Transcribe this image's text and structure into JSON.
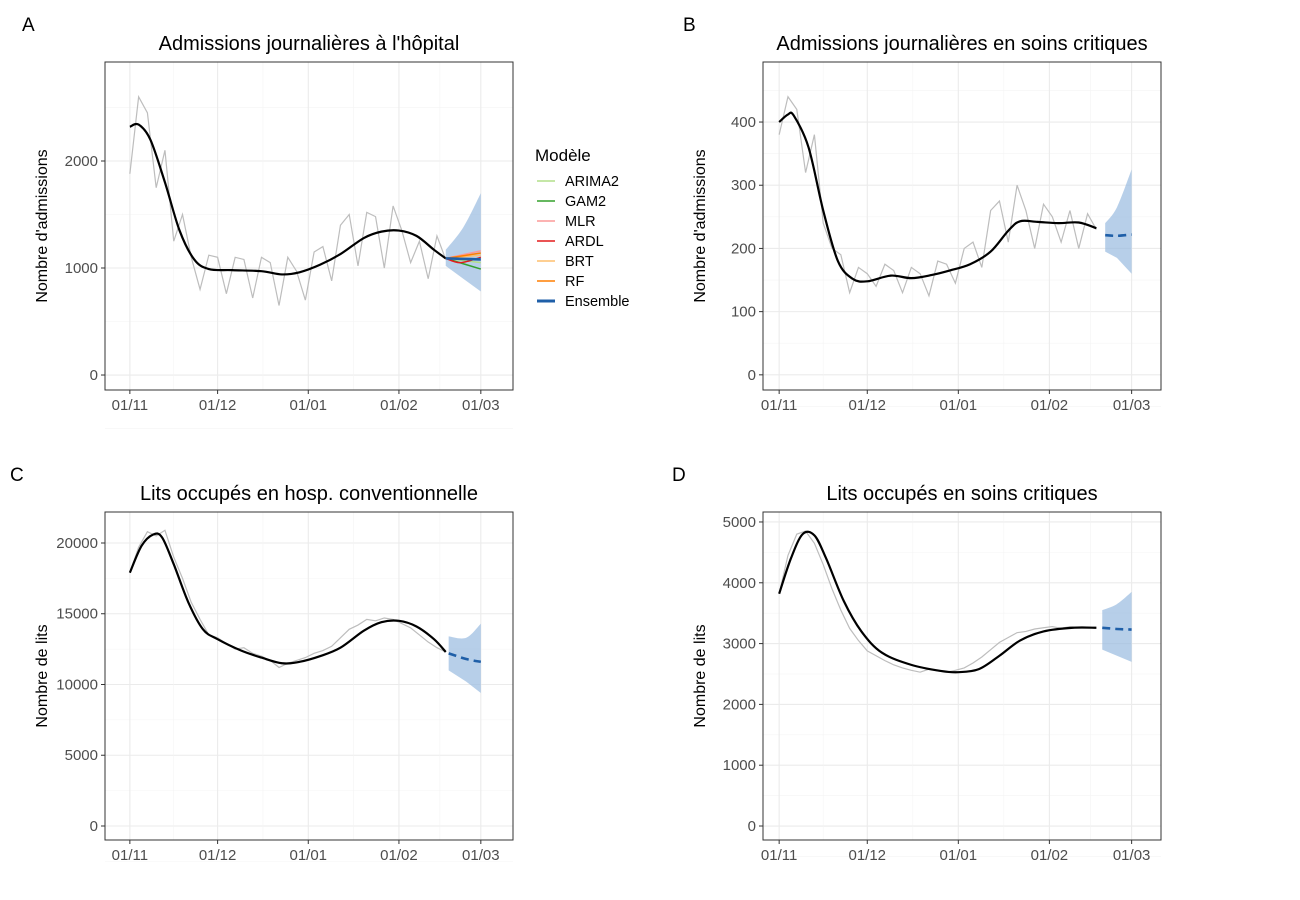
{
  "legend": {
    "title": "Modèle",
    "entries": [
      {
        "name": "ARIMA2",
        "color": "#b2df8a"
      },
      {
        "name": "GAM2",
        "color": "#33a02c"
      },
      {
        "name": "MLR",
        "color": "#fb9a99"
      },
      {
        "name": "ARDL",
        "color": "#e31a1c"
      },
      {
        "name": "BRT",
        "color": "#fdbf6f"
      },
      {
        "name": "RF",
        "color": "#ff7f00"
      },
      {
        "name": "Ensemble",
        "color": "#1f5fa8"
      }
    ]
  },
  "colors": {
    "observed": "#bdbdbd",
    "trend": "#000000",
    "band": "#99badf",
    "ensemble": "#1f5fa8"
  },
  "chart_data": [
    {
      "panel": "A",
      "type": "line",
      "title": "Admissions journalières à l'hôpital",
      "ylabel": "Nombre d'admissions",
      "xlabel": "",
      "xticks": [
        {
          "day": 0,
          "label": "01/11"
        },
        {
          "day": 30,
          "label": "01/12"
        },
        {
          "day": 61,
          "label": "01/01"
        },
        {
          "day": 92,
          "label": "01/02"
        },
        {
          "day": 120,
          "label": "01/03"
        }
      ],
      "yticks": [
        0,
        1000,
        2000
      ],
      "ylim": [
        -140,
        2925
      ],
      "xlim": [
        -8.5,
        131
      ],
      "obs_step_days": 3,
      "observed": [
        1880,
        2600,
        2450,
        1750,
        2100,
        1250,
        1500,
        1100,
        800,
        1120,
        1100,
        760,
        1100,
        1080,
        720,
        1100,
        1050,
        650,
        1100,
        970,
        700,
        1150,
        1200,
        880,
        1400,
        1500,
        1020,
        1520,
        1480,
        1000,
        1580,
        1350,
        1050,
        1250,
        900,
        1300,
        1080
      ],
      "trend": [
        [
          0,
          2320
        ],
        [
          3,
          2340
        ],
        [
          7,
          2200
        ],
        [
          12,
          1800
        ],
        [
          17,
          1350
        ],
        [
          22,
          1080
        ],
        [
          27,
          990
        ],
        [
          35,
          980
        ],
        [
          45,
          970
        ],
        [
          52,
          940
        ],
        [
          58,
          960
        ],
        [
          65,
          1030
        ],
        [
          72,
          1130
        ],
        [
          80,
          1280
        ],
        [
          86,
          1340
        ],
        [
          92,
          1350
        ],
        [
          98,
          1300
        ],
        [
          104,
          1170
        ],
        [
          108,
          1090
        ]
      ],
      "forecast": {
        "ensemble": [
          [
            108,
            1090
          ],
          [
            114,
            1085
          ],
          [
            120,
            1080
          ]
        ],
        "lower": [
          [
            108,
            1020
          ],
          [
            114,
            900
          ],
          [
            120,
            780
          ]
        ],
        "upper": [
          [
            108,
            1170
          ],
          [
            114,
            1380
          ],
          [
            120,
            1700
          ]
        ],
        "models": {
          "ARIMA2": [
            [
              108,
              1090
            ],
            [
              120,
              1050
            ]
          ],
          "GAM2": [
            [
              108,
              1090
            ],
            [
              120,
              990
            ]
          ],
          "MLR": [
            [
              108,
              1090
            ],
            [
              120,
              1160
            ]
          ],
          "ARDL": [
            [
              108,
              1090
            ],
            [
              113,
              1050
            ],
            [
              120,
              1100
            ]
          ],
          "BRT": [
            [
              108,
              1090
            ],
            [
              120,
              1120
            ]
          ],
          "RF": [
            [
              108,
              1090
            ],
            [
              120,
              1140
            ]
          ]
        }
      }
    },
    {
      "panel": "B",
      "type": "line",
      "title": "Admissions journalières en soins critiques",
      "ylabel": "Nombre d'admissions",
      "xlabel": "",
      "xticks": [
        {
          "day": 0,
          "label": "01/11"
        },
        {
          "day": 30,
          "label": "01/12"
        },
        {
          "day": 61,
          "label": "01/01"
        },
        {
          "day": 92,
          "label": "01/02"
        },
        {
          "day": 120,
          "label": "01/03"
        }
      ],
      "yticks": [
        0,
        100,
        200,
        300,
        400
      ],
      "ylim": [
        -24,
        495
      ],
      "xlim": [
        -5.5,
        130
      ],
      "obs_step_days": 3,
      "observed": [
        380,
        440,
        420,
        320,
        380,
        240,
        200,
        190,
        130,
        170,
        160,
        140,
        175,
        165,
        130,
        170,
        160,
        125,
        180,
        175,
        145,
        200,
        210,
        170,
        260,
        275,
        210,
        300,
        260,
        200,
        270,
        250,
        210,
        260,
        200,
        255,
        230
      ],
      "trend": [
        [
          0,
          400
        ],
        [
          3,
          412
        ],
        [
          5,
          410
        ],
        [
          10,
          360
        ],
        [
          15,
          260
        ],
        [
          20,
          180
        ],
        [
          25,
          152
        ],
        [
          30,
          148
        ],
        [
          38,
          157
        ],
        [
          45,
          153
        ],
        [
          52,
          158
        ],
        [
          58,
          165
        ],
        [
          65,
          175
        ],
        [
          72,
          195
        ],
        [
          78,
          228
        ],
        [
          82,
          243
        ],
        [
          88,
          242
        ],
        [
          95,
          240
        ],
        [
          102,
          241
        ],
        [
          108,
          232
        ]
      ],
      "forecast": {
        "ensemble": [
          [
            111,
            221
          ],
          [
            115,
            220
          ],
          [
            120,
            222
          ]
        ],
        "lower": [
          [
            111,
            195
          ],
          [
            115,
            185
          ],
          [
            120,
            160
          ]
        ],
        "upper": [
          [
            111,
            240
          ],
          [
            115,
            265
          ],
          [
            120,
            325
          ]
        ],
        "models": {}
      }
    },
    {
      "panel": "C",
      "type": "line",
      "title": "Lits occupés en hosp. conventionnelle",
      "ylabel": "Nombre de lits",
      "xlabel": "",
      "xticks": [
        {
          "day": 0,
          "label": "01/11"
        },
        {
          "day": 30,
          "label": "01/12"
        },
        {
          "day": 61,
          "label": "01/01"
        },
        {
          "day": 92,
          "label": "01/02"
        },
        {
          "day": 120,
          "label": "01/03"
        }
      ],
      "yticks": [
        0,
        5000,
        10000,
        15000,
        20000
      ],
      "ylim": [
        -990,
        22190
      ],
      "xlim": [
        -8.5,
        131
      ],
      "obs_step_days": 3,
      "observed": [
        17900,
        19700,
        20800,
        20500,
        20900,
        19000,
        17500,
        15800,
        14600,
        13500,
        13300,
        12900,
        12500,
        12600,
        12200,
        12000,
        11700,
        11200,
        11500,
        11700,
        11900,
        12200,
        12400,
        12700,
        13300,
        13900,
        14200,
        14600,
        14500,
        14700,
        14600,
        14300,
        14000,
        13500,
        13000,
        12600,
        12300
      ],
      "trend": [
        [
          0,
          17900
        ],
        [
          4,
          19800
        ],
        [
          8,
          20600
        ],
        [
          11,
          20400
        ],
        [
          15,
          18500
        ],
        [
          20,
          15800
        ],
        [
          25,
          13900
        ],
        [
          30,
          13200
        ],
        [
          38,
          12400
        ],
        [
          45,
          11900
        ],
        [
          52,
          11500
        ],
        [
          58,
          11600
        ],
        [
          65,
          12000
        ],
        [
          72,
          12600
        ],
        [
          80,
          13800
        ],
        [
          86,
          14400
        ],
        [
          92,
          14500
        ],
        [
          98,
          14100
        ],
        [
          104,
          13200
        ],
        [
          108,
          12300
        ]
      ],
      "forecast": {
        "ensemble": [
          [
            109,
            12200
          ],
          [
            115,
            11800
          ],
          [
            120,
            11600
          ]
        ],
        "lower": [
          [
            109,
            11000
          ],
          [
            115,
            10200
          ],
          [
            120,
            9400
          ]
        ],
        "upper": [
          [
            109,
            13400
          ],
          [
            115,
            13300
          ],
          [
            120,
            14300
          ]
        ],
        "models": {}
      }
    },
    {
      "panel": "D",
      "type": "line",
      "title": "Lits occupés en soins critiques",
      "ylabel": "Nombre de lits",
      "xlabel": "",
      "xticks": [
        {
          "day": 0,
          "label": "01/11"
        },
        {
          "day": 30,
          "label": "01/12"
        },
        {
          "day": 61,
          "label": "01/01"
        },
        {
          "day": 92,
          "label": "01/02"
        },
        {
          "day": 120,
          "label": "01/03"
        }
      ],
      "yticks": [
        0,
        1000,
        2000,
        3000,
        4000,
        5000
      ],
      "ylim": [
        -230,
        5164
      ],
      "xlim": [
        -5.5,
        130
      ],
      "obs_step_days": 3,
      "observed": [
        3820,
        4450,
        4800,
        4850,
        4650,
        4300,
        3900,
        3550,
        3250,
        3050,
        2880,
        2800,
        2720,
        2650,
        2600,
        2560,
        2530,
        2580,
        2550,
        2530,
        2560,
        2600,
        2680,
        2780,
        2900,
        3020,
        3100,
        3180,
        3200,
        3240,
        3260,
        3280,
        3250,
        3280,
        3260,
        3270,
        3260
      ],
      "trend": [
        [
          0,
          3820
        ],
        [
          4,
          4400
        ],
        [
          8,
          4800
        ],
        [
          12,
          4780
        ],
        [
          16,
          4400
        ],
        [
          22,
          3700
        ],
        [
          28,
          3200
        ],
        [
          35,
          2850
        ],
        [
          45,
          2650
        ],
        [
          55,
          2550
        ],
        [
          61,
          2530
        ],
        [
          68,
          2580
        ],
        [
          75,
          2800
        ],
        [
          82,
          3050
        ],
        [
          90,
          3200
        ],
        [
          100,
          3260
        ],
        [
          108,
          3260
        ]
      ],
      "forecast": {
        "ensemble": [
          [
            110,
            3260
          ],
          [
            115,
            3240
          ],
          [
            120,
            3230
          ]
        ],
        "lower": [
          [
            110,
            2900
          ],
          [
            115,
            2800
          ],
          [
            120,
            2700
          ]
        ],
        "upper": [
          [
            110,
            3550
          ],
          [
            115,
            3650
          ],
          [
            120,
            3850
          ]
        ],
        "models": {}
      }
    }
  ]
}
